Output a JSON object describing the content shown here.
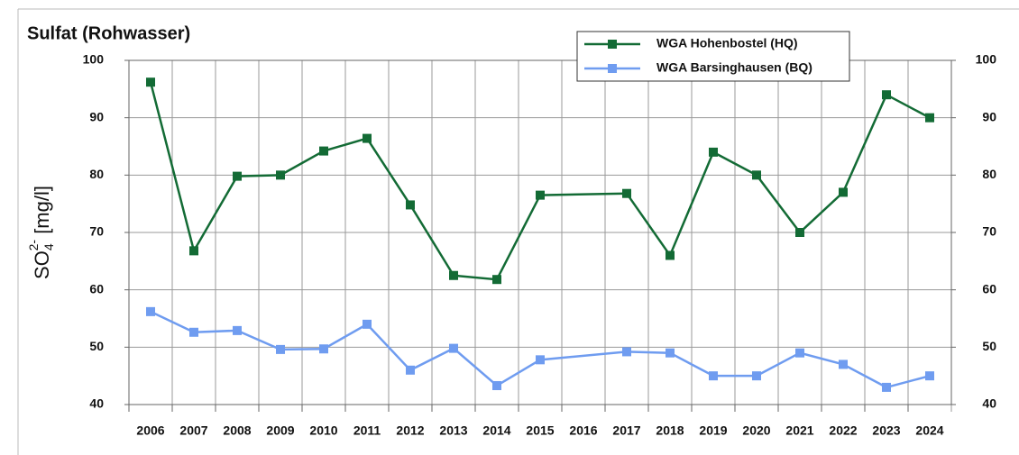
{
  "chart_data": {
    "type": "line",
    "title": "Sulfat (Rohwasser)",
    "y_label": {
      "base": "SO",
      "sub": "4",
      "sup": "2-",
      "unit": " [mg/l]"
    },
    "x": [
      2006,
      2007,
      2008,
      2009,
      2010,
      2011,
      2012,
      2013,
      2014,
      2015,
      2017,
      2018,
      2019,
      2020,
      2021,
      2022,
      2023,
      2024
    ],
    "xlim": [
      2005.5,
      2024.5
    ],
    "xticks": [
      2006,
      2007,
      2008,
      2009,
      2010,
      2011,
      2012,
      2013,
      2014,
      2015,
      2016,
      2017,
      2018,
      2019,
      2020,
      2021,
      2022,
      2023,
      2024
    ],
    "series": [
      {
        "name": "WGA Hohenbostel (HQ)",
        "color": "#136b35",
        "values": [
          96.2,
          66.8,
          79.8,
          80,
          84.2,
          86.4,
          74.8,
          62.5,
          61.8,
          76.5,
          76.8,
          66,
          84,
          80,
          70,
          77,
          94,
          90
        ]
      },
      {
        "name": "WGA Barsinghausen (BQ)",
        "color": "#6f9cf0",
        "values": [
          56.2,
          52.6,
          52.9,
          49.6,
          49.7,
          54,
          46,
          49.8,
          43.3,
          47.8,
          49.2,
          49,
          45,
          45,
          49,
          47,
          43,
          45
        ]
      }
    ],
    "ylim": [
      40,
      100
    ],
    "yticks": [
      40,
      50,
      60,
      70,
      80,
      90,
      100
    ],
    "y2lim": [
      40,
      100
    ],
    "y2ticks": [
      40,
      50,
      60,
      70,
      80,
      90,
      100
    ],
    "grid": true,
    "legend": "top-right"
  }
}
